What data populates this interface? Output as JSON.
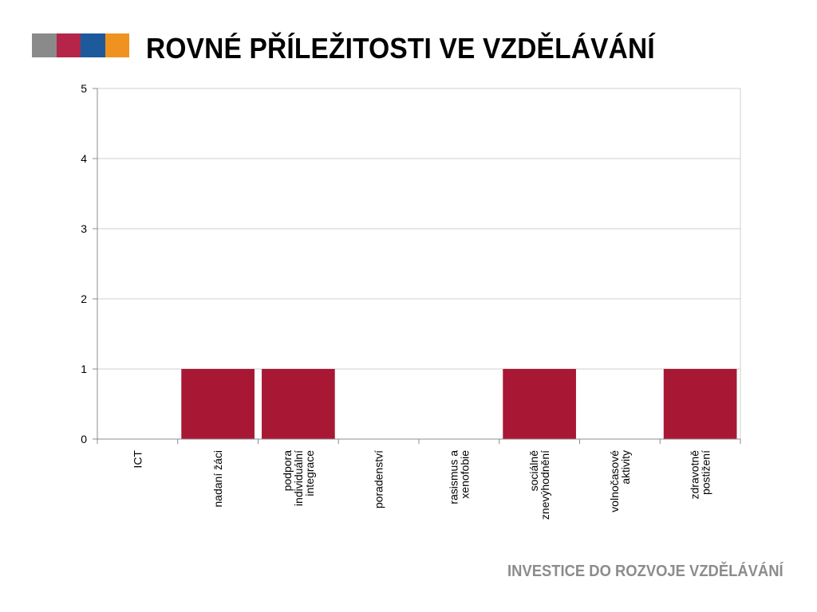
{
  "header": {
    "title": "ROVNÉ PŘÍLEŽITOSTI VE VZDĚLÁVÁNÍ",
    "logo_colors": [
      "#8a8a8a",
      "#b5254a",
      "#1c5a9c",
      "#f0921f"
    ]
  },
  "footer": {
    "text": "INVESTICE DO ROZVOJE VZDĚLÁVÁNÍ"
  },
  "chart_data": {
    "type": "bar",
    "title": "",
    "xlabel": "",
    "ylabel": "",
    "ylim": [
      0,
      5
    ],
    "yticks": [
      0,
      1,
      2,
      3,
      4,
      5
    ],
    "grid": true,
    "legend": "none",
    "bar_color": "#a81834",
    "categories": [
      [
        "ICT"
      ],
      [
        "nadaní žáci"
      ],
      [
        "podpora",
        "individuální",
        "integrace"
      ],
      [
        "poradenství"
      ],
      [
        "rasismus a",
        "xenofobie"
      ],
      [
        "sociálně",
        "znevýhodnění"
      ],
      [
        "volnočasové",
        "aktivity"
      ],
      [
        "zdravotně",
        "postižení"
      ]
    ],
    "values": [
      0,
      1,
      1,
      0,
      0,
      1,
      0,
      1
    ]
  }
}
